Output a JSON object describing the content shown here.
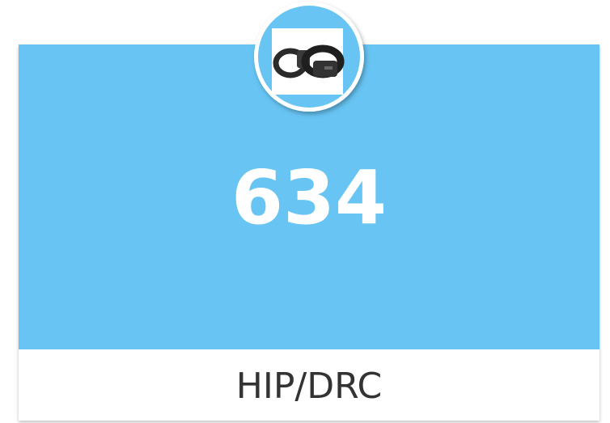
{
  "card": {
    "value": 634,
    "label": "HIP/DRC"
  }
}
